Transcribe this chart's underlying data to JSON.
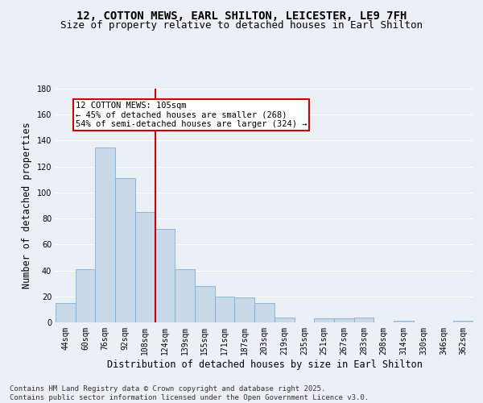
{
  "title_line1": "12, COTTON MEWS, EARL SHILTON, LEICESTER, LE9 7FH",
  "title_line2": "Size of property relative to detached houses in Earl Shilton",
  "xlabel": "Distribution of detached houses by size in Earl Shilton",
  "ylabel": "Number of detached properties",
  "categories": [
    "44sqm",
    "60sqm",
    "76sqm",
    "92sqm",
    "108sqm",
    "124sqm",
    "139sqm",
    "155sqm",
    "171sqm",
    "187sqm",
    "203sqm",
    "219sqm",
    "235sqm",
    "251sqm",
    "267sqm",
    "283sqm",
    "298sqm",
    "314sqm",
    "330sqm",
    "346sqm",
    "362sqm"
  ],
  "values": [
    15,
    41,
    135,
    111,
    85,
    72,
    41,
    28,
    20,
    19,
    15,
    4,
    0,
    3,
    3,
    4,
    0,
    1,
    0,
    0,
    1
  ],
  "bar_color": "#c9d9ea",
  "bar_edge_color": "#7bafd4",
  "highlight_line_bin": 4,
  "highlight_label": "12 COTTON MEWS: 105sqm",
  "arrow_left_text": "← 45% of detached houses are smaller (268)",
  "arrow_right_text": "54% of semi-detached houses are larger (324) →",
  "annotation_box_color": "#ffffff",
  "annotation_box_edge": "#cc0000",
  "red_line_color": "#cc0000",
  "ylim": [
    0,
    180
  ],
  "yticks": [
    0,
    20,
    40,
    60,
    80,
    100,
    120,
    140,
    160,
    180
  ],
  "footnote_line1": "Contains HM Land Registry data © Crown copyright and database right 2025.",
  "footnote_line2": "Contains public sector information licensed under the Open Government Licence v3.0.",
  "bg_color": "#eaf0f6",
  "grid_color": "#ffffff",
  "title_fontsize": 10,
  "subtitle_fontsize": 9,
  "tick_fontsize": 7,
  "axis_label_fontsize": 8.5,
  "footnote_fontsize": 6.5,
  "annotation_fontsize": 7.5
}
